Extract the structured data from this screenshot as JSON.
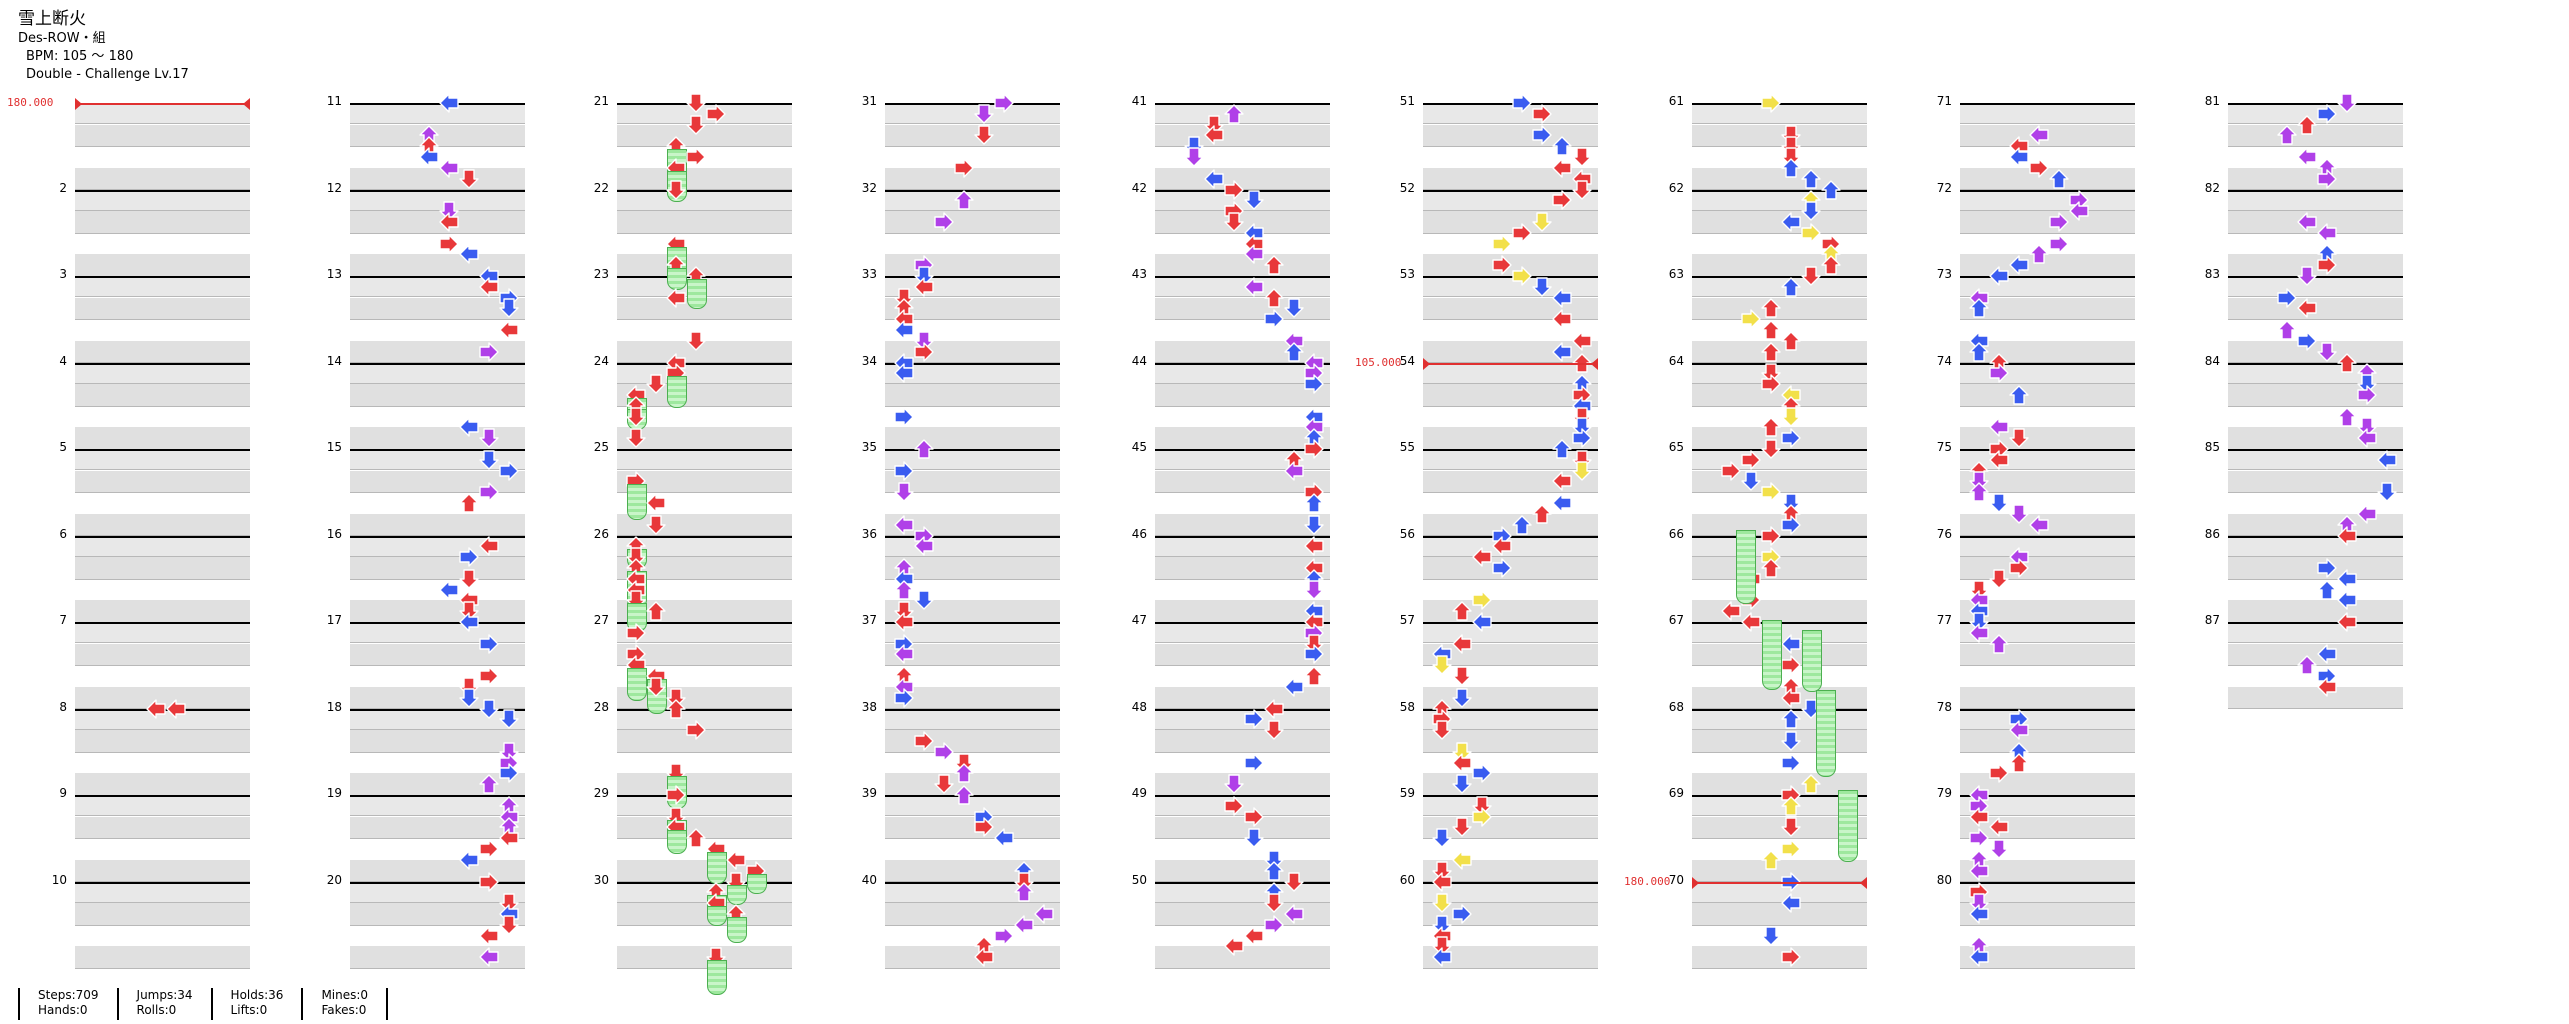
{
  "header": {
    "title": "雪上断火",
    "artist": "Des-ROW・組",
    "bpm": "BPM: 105 ～ 180",
    "difficulty": "Double - Challenge Lv.17"
  },
  "bpm_markers": [
    {
      "label": "180.000",
      "column": 0,
      "measure": 1
    },
    {
      "label": "105.000",
      "column": 5,
      "measure": 54
    },
    {
      "label": "180.000",
      "column": 6,
      "measure": 70
    }
  ],
  "columns": [
    {
      "measures": [
        "",
        "2",
        "3",
        "4",
        "5",
        "6",
        "7",
        "8",
        "9",
        "10"
      ]
    },
    {
      "measures": [
        "11",
        "12",
        "13",
        "14",
        "15",
        "16",
        "17",
        "18",
        "19",
        "20"
      ]
    },
    {
      "measures": [
        "21",
        "22",
        "23",
        "24",
        "25",
        "26",
        "27",
        "28",
        "29",
        "30"
      ]
    },
    {
      "measures": [
        "31",
        "32",
        "33",
        "34",
        "35",
        "36",
        "37",
        "38",
        "39",
        "40"
      ]
    },
    {
      "measures": [
        "41",
        "42",
        "43",
        "44",
        "45",
        "46",
        "47",
        "48",
        "49",
        "50"
      ]
    },
    {
      "measures": [
        "51",
        "52",
        "53",
        "54",
        "55",
        "56",
        "57",
        "58",
        "59",
        "60"
      ]
    },
    {
      "measures": [
        "61",
        "62",
        "63",
        "64",
        "65",
        "66",
        "67",
        "68",
        "69",
        "70"
      ]
    },
    {
      "measures": [
        "71",
        "72",
        "73",
        "74",
        "75",
        "76",
        "77",
        "78",
        "79",
        "80"
      ]
    },
    {
      "measures": [
        "81",
        "82",
        "83",
        "84",
        "85",
        "86",
        "87"
      ]
    }
  ],
  "arrow_colors": {
    "quarter": "#e8383a",
    "eighth": "#3a5cf0",
    "sixteenth": "#b040e8",
    "twelfth": "#f2e04a",
    "hold": "#9ee89e"
  },
  "stats": {
    "steps": "Steps:709",
    "hands": "Hands:0",
    "jumps": "Jumps:34",
    "rolls": "Rolls:0",
    "holds": "Holds:36",
    "lifts": "Lifts:0",
    "mines": "Mines:0",
    "fakes": "Fakes:0"
  }
}
